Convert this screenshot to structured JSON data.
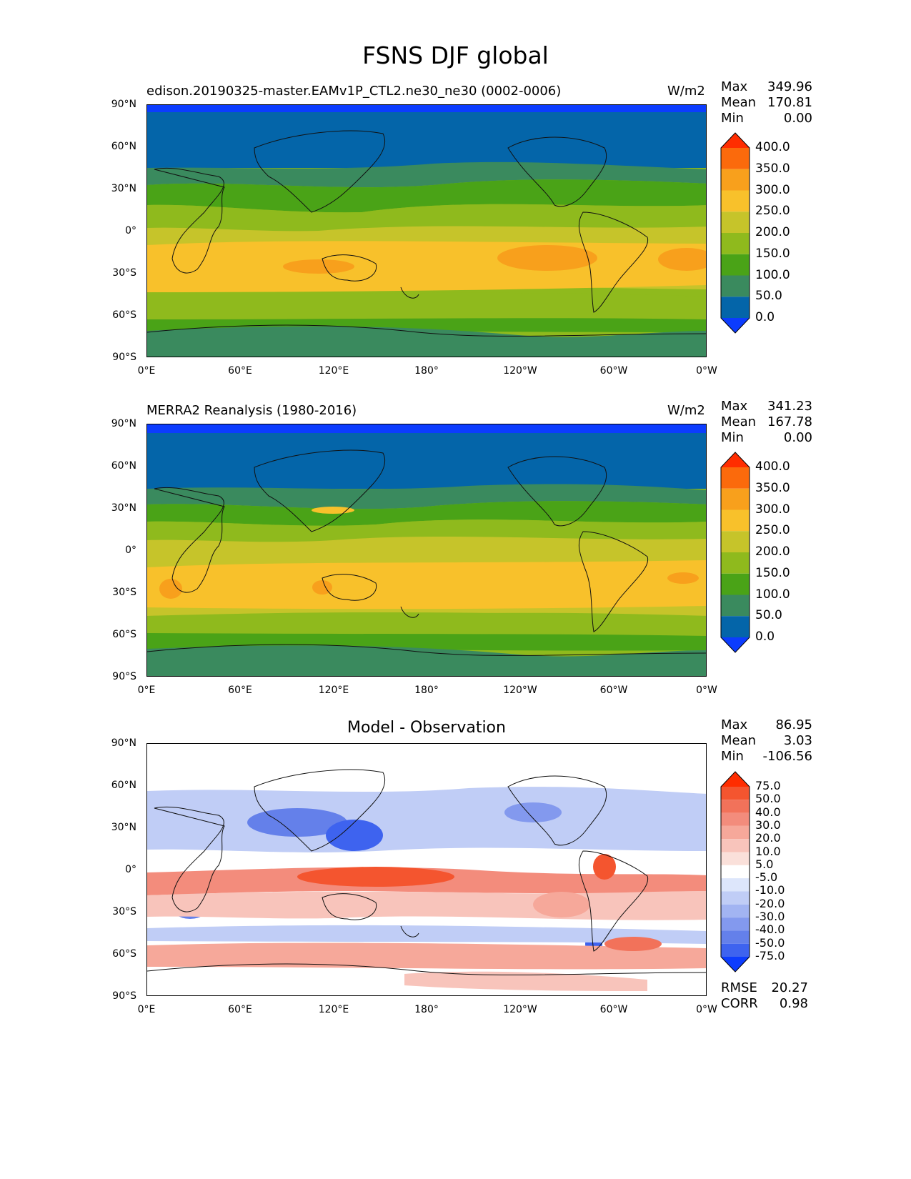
{
  "title": "FSNS DJF global",
  "axes": {
    "lat_ticks": [
      "90°N",
      "60°N",
      "30°N",
      "0°",
      "30°S",
      "60°S",
      "90°S"
    ],
    "lon_ticks": [
      "0°E",
      "60°E",
      "120°E",
      "180°",
      "120°W",
      "60°W",
      "0°W"
    ]
  },
  "panels": [
    {
      "label": "edison.20190325-master.EAMv1P_CTL2.ne30_ne30 (0002-0006)",
      "units": "W/m2",
      "stats": {
        "max_label": "Max",
        "max": "349.96",
        "mean_label": "Mean",
        "mean": "170.81",
        "min_label": "Min",
        "min": "0.00"
      },
      "colorbar": {
        "labels": [
          "400.0",
          "350.0",
          "300.0",
          "250.0",
          "200.0",
          "150.0",
          "100.0",
          "50.0",
          "0.0"
        ],
        "colors": [
          "#ff2d00",
          "#fb6a0c",
          "#f8a01c",
          "#f8c12b",
          "#c6c42a",
          "#8fba1d",
          "#4aa317",
          "#3a8a5e",
          "#0465a9",
          "#0c3cfe"
        ]
      }
    },
    {
      "label": "MERRA2 Reanalysis (1980-2016)",
      "units": "W/m2",
      "stats": {
        "max_label": "Max",
        "max": "341.23",
        "mean_label": "Mean",
        "mean": "167.78",
        "min_label": "Min",
        "min": "0.00"
      },
      "colorbar": {
        "labels": [
          "400.0",
          "350.0",
          "300.0",
          "250.0",
          "200.0",
          "150.0",
          "100.0",
          "50.0",
          "0.0"
        ],
        "colors": [
          "#ff2d00",
          "#fb6a0c",
          "#f8a01c",
          "#f8c12b",
          "#c6c42a",
          "#8fba1d",
          "#4aa317",
          "#3a8a5e",
          "#0465a9",
          "#0c3cfe"
        ]
      }
    },
    {
      "label": "Model - Observation",
      "units": "",
      "stats": {
        "max_label": "Max",
        "max": "86.95",
        "mean_label": "Mean",
        "mean": "3.03",
        "min_label": "Min",
        "min": "-106.56"
      },
      "metrics": {
        "rmse_label": "RMSE",
        "rmse": "20.27",
        "corr_label": "CORR",
        "corr": "0.98"
      },
      "colorbar": {
        "labels": [
          "75.0",
          "50.0",
          "40.0",
          "30.0",
          "20.0",
          "10.0",
          "5.0",
          "-5.0",
          "-10.0",
          "-20.0",
          "-30.0",
          "-40.0",
          "-50.0",
          "-75.0"
        ],
        "colors": [
          "#ff2d00",
          "#f4552f",
          "#f2725a",
          "#f38c7c",
          "#f6a89a",
          "#f8c4bb",
          "#fae0da",
          "#ffffff",
          "#dde6fb",
          "#c0cdf6",
          "#a2b4f2",
          "#8399ee",
          "#6480ea",
          "#3e63ef",
          "#0c3cfe"
        ]
      }
    }
  ],
  "chart_data": [
    {
      "type": "heatmap",
      "title": "edison.20190325-master.EAMv1P_CTL2.ne30_ne30 (0002-0006)",
      "units": "W/m2",
      "xlim": [
        0,
        360
      ],
      "ylim": [
        -90,
        90
      ],
      "levels": [
        0,
        50,
        100,
        150,
        200,
        250,
        300,
        350,
        400
      ],
      "stats": {
        "max": 349.96,
        "mean": 170.81,
        "min": 0.0
      },
      "zonal_bands": [
        {
          "lat": [
            86,
            90
          ],
          "value": 0
        },
        {
          "lat": [
            50,
            86
          ],
          "value": 40
        },
        {
          "lat": [
            40,
            50
          ],
          "value": 75
        },
        {
          "lat": [
            28,
            40
          ],
          "value": 125
        },
        {
          "lat": [
            20,
            28
          ],
          "value": 170
        },
        {
          "lat": [
            5,
            20
          ],
          "value": 215
        },
        {
          "lat": [
            -20,
            5
          ],
          "value": 255
        },
        {
          "lat": [
            -40,
            -20
          ],
          "value": 265
        },
        {
          "lat": [
            -50,
            -40
          ],
          "value": 215
        },
        {
          "lat": [
            -70,
            -50
          ],
          "value": 180
        },
        {
          "lat": [
            -90,
            -70
          ],
          "value": 110
        }
      ]
    },
    {
      "type": "heatmap",
      "title": "MERRA2 Reanalysis (1980-2016)",
      "units": "W/m2",
      "xlim": [
        0,
        360
      ],
      "ylim": [
        -90,
        90
      ],
      "levels": [
        0,
        50,
        100,
        150,
        200,
        250,
        300,
        350,
        400
      ],
      "stats": {
        "max": 341.23,
        "mean": 167.78,
        "min": 0.0
      },
      "zonal_bands": [
        {
          "lat": [
            86,
            90
          ],
          "value": 0
        },
        {
          "lat": [
            50,
            86
          ],
          "value": 40
        },
        {
          "lat": [
            38,
            50
          ],
          "value": 80
        },
        {
          "lat": [
            25,
            38
          ],
          "value": 130
        },
        {
          "lat": [
            8,
            25
          ],
          "value": 200
        },
        {
          "lat": [
            -12,
            8
          ],
          "value": 230
        },
        {
          "lat": [
            -40,
            -12
          ],
          "value": 260
        },
        {
          "lat": [
            -52,
            -40
          ],
          "value": 200
        },
        {
          "lat": [
            -65,
            -52
          ],
          "value": 160
        },
        {
          "lat": [
            -90,
            -65
          ],
          "value": 110
        }
      ]
    },
    {
      "type": "heatmap",
      "title": "Model - Observation",
      "xlim": [
        0,
        360
      ],
      "ylim": [
        -90,
        90
      ],
      "levels": [
        -75,
        -50,
        -40,
        -30,
        -20,
        -10,
        -5,
        5,
        10,
        20,
        30,
        40,
        50,
        75
      ],
      "stats": {
        "max": 86.95,
        "mean": 3.03,
        "min": -106.56,
        "rmse": 20.27,
        "corr": 0.98
      },
      "zonal_bands": [
        {
          "lat": [
            60,
            90
          ],
          "value": 0
        },
        {
          "lat": [
            20,
            40
          ],
          "value": -25
        },
        {
          "lat": [
            5,
            20
          ],
          "value": -10
        },
        {
          "lat": [
            -15,
            0
          ],
          "value": 35
        },
        {
          "lat": [
            -35,
            -15
          ],
          "value": 20
        },
        {
          "lat": [
            -50,
            -40
          ],
          "value": -10
        },
        {
          "lat": [
            -65,
            -50
          ],
          "value": 20
        },
        {
          "lat": [
            -90,
            -70
          ],
          "value": 5
        }
      ]
    }
  ]
}
